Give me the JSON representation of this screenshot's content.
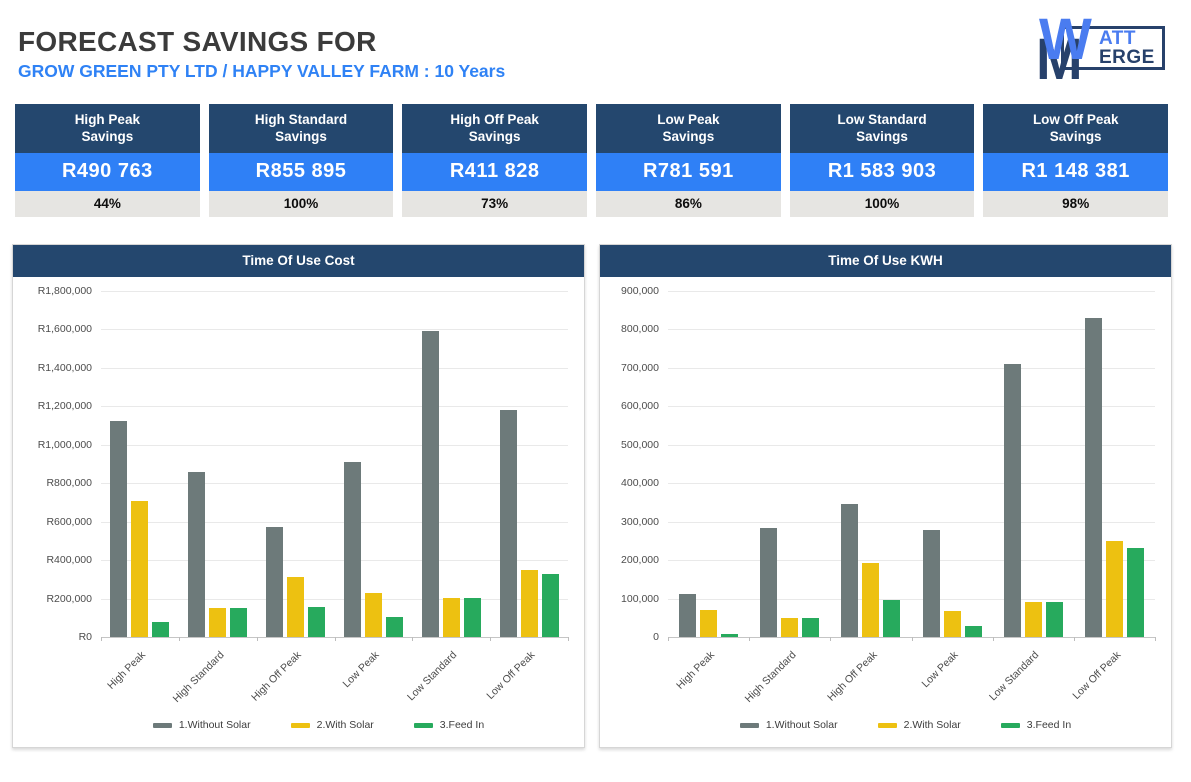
{
  "header": {
    "title": "FORECAST SAVINGS FOR",
    "subtitle": "GROW GREEN PTY LTD / HAPPY VALLEY FARM : 10 Years"
  },
  "logo": {
    "monogram_w": "W",
    "monogram_m": "M",
    "line1": "ATT",
    "line2": "ERGE"
  },
  "kpis": [
    {
      "label_line1": "High Peak",
      "label_line2": "Savings",
      "value": "R490 763",
      "percent": "44%"
    },
    {
      "label_line1": "High Standard",
      "label_line2": "Savings",
      "value": "R855 895",
      "percent": "100%"
    },
    {
      "label_line1": "High Off Peak",
      "label_line2": "Savings",
      "value": "R411 828",
      "percent": "73%"
    },
    {
      "label_line1": "Low Peak",
      "label_line2": "Savings",
      "value": "R781 591",
      "percent": "86%"
    },
    {
      "label_line1": "Low Standard",
      "label_line2": "Savings",
      "value": "R1 583 903",
      "percent": "100%"
    },
    {
      "label_line1": "Low Off Peak",
      "label_line2": "Savings",
      "value": "R1 148 381",
      "percent": "98%"
    }
  ],
  "colors": {
    "navy": "#24476e",
    "blue": "#2f80f6",
    "accent-blue": "#2f82f5",
    "logo-light-blue": "#4a7cf0",
    "logo-navy": "#27416b"
  },
  "chart_data": [
    {
      "type": "bar",
      "title": "Time Of Use Cost",
      "categories": [
        "High Peak",
        "High Standard",
        "High Off Peak",
        "Low Peak",
        "Low Standard",
        "Low Off Peak"
      ],
      "series": [
        {
          "name": "1.Without Solar",
          "color": "#6d7a7a",
          "values": [
            1125000,
            858000,
            570000,
            910000,
            1590000,
            1180000
          ]
        },
        {
          "name": "2.With Solar",
          "color": "#edc111",
          "values": [
            710000,
            152000,
            312000,
            230000,
            205000,
            350000
          ]
        },
        {
          "name": "3.Feed In",
          "color": "#27aa5d",
          "values": [
            80000,
            152000,
            157000,
            105000,
            205000,
            328000
          ]
        }
      ],
      "xlabel": "",
      "ylabel": "",
      "ylim": [
        0,
        1800000
      ],
      "ytick_labels": [
        "R1,800,000",
        "R1,600,000",
        "R1,400,000",
        "R1,200,000",
        "R1,000,000",
        "R800,000",
        "R600,000",
        "R400,000",
        "R200,000",
        "R0"
      ],
      "grid": true,
      "legend_position": "bottom"
    },
    {
      "type": "bar",
      "title": "Time Of Use KWH",
      "categories": [
        "High Peak",
        "High Standard",
        "High Off Peak",
        "Low Peak",
        "Low Standard",
        "Low Off Peak"
      ],
      "series": [
        {
          "name": "1.Without Solar",
          "color": "#6d7a7a",
          "values": [
            113000,
            283000,
            347000,
            278000,
            710000,
            830000
          ]
        },
        {
          "name": "2.With Solar",
          "color": "#edc111",
          "values": [
            70000,
            50000,
            192000,
            68000,
            90000,
            250000
          ]
        },
        {
          "name": "3.Feed In",
          "color": "#27aa5d",
          "values": [
            8000,
            50000,
            97000,
            28000,
            90000,
            232000
          ]
        }
      ],
      "xlabel": "",
      "ylabel": "",
      "ylim": [
        0,
        900000
      ],
      "ytick_labels": [
        "900,000",
        "800,000",
        "700,000",
        "600,000",
        "500,000",
        "400,000",
        "300,000",
        "200,000",
        "100,000",
        "0"
      ],
      "grid": true,
      "legend_position": "bottom"
    }
  ]
}
